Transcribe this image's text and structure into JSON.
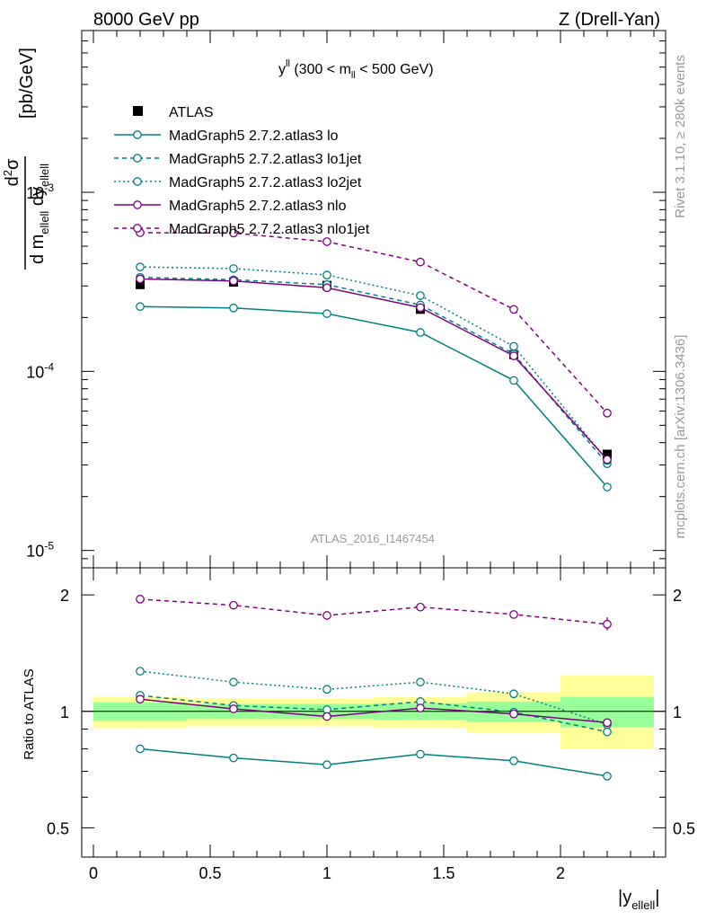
{
  "header": {
    "left": "8000 GeV pp",
    "right": "Z (Drell-Yan)"
  },
  "side_labels": {
    "rivet": "Rivet 3.1.10, ≥ 280k events",
    "mcplots": "mcplots.cern.ch [arXiv:1306.3436]"
  },
  "colors": {
    "teal": "#008080",
    "purple": "#800080",
    "atlas": "#000000",
    "band_inner": "#99ff99",
    "band_outer": "#ffff99"
  },
  "chart_data": [
    {
      "type": "line",
      "title": "y^ll (300 < m_ll < 500 GeV)",
      "watermark": "ATLAS_2016_I1467454",
      "ylabel": "d²σ / d m_ellell dy_ellell [pb/GeV]",
      "xlabel": "",
      "yscale": "log",
      "ylim": [
        8e-06,
        0.008
      ],
      "xlim": [
        -0.05,
        2.45
      ],
      "y_tick_labels": [
        "10^-5",
        "10^-4",
        "10^-3"
      ],
      "legend_position": "top-left",
      "x": [
        0.2,
        0.6,
        1.0,
        1.4,
        1.8,
        2.2
      ],
      "series": [
        {
          "name": "ATLAS",
          "style": "marker",
          "color": "#000000",
          "values": [
            0.000305,
            0.000315,
            0.000302,
            0.000222,
            0.000124,
            3.45e-05
          ]
        },
        {
          "name": "MadGraph5 2.7.2.atlas3 lo",
          "style": "solid",
          "color": "#008080",
          "values": [
            0.00023,
            0.000226,
            0.00021,
            0.000165,
            8.9e-05,
            2.26e-05
          ]
        },
        {
          "name": "MadGraph5 2.7.2.atlas3 lo1jet",
          "style": "dashed",
          "color": "#008080",
          "values": [
            0.000335,
            0.000325,
            0.000305,
            0.000235,
            0.000125,
            3.05e-05
          ]
        },
        {
          "name": "MadGraph5 2.7.2.atlas3 lo2jet",
          "style": "dotted",
          "color": "#008080",
          "values": [
            0.000383,
            0.000375,
            0.000345,
            0.000265,
            0.000138,
            3.18e-05
          ]
        },
        {
          "name": "MadGraph5 2.7.2.atlas3 nlo",
          "style": "solid",
          "color": "#800080",
          "values": [
            0.000328,
            0.00032,
            0.000293,
            0.000227,
            0.000122,
            3.22e-05
          ]
        },
        {
          "name": "MadGraph5 2.7.2.atlas3 nlo1jet",
          "style": "dashed",
          "color": "#800080",
          "values": [
            0.000595,
            0.000592,
            0.00053,
            0.000408,
            0.000222,
            5.85e-05
          ]
        }
      ]
    },
    {
      "type": "line",
      "title": "",
      "ylabel": "Ratio to ATLAS",
      "xlabel": "|y_ellell|",
      "yscale": "log",
      "ylim": [
        0.42,
        2.35
      ],
      "xlim": [
        -0.05,
        2.45
      ],
      "y_ticks": [
        0.5,
        1,
        2
      ],
      "y_tick_labels": [
        "0.5",
        "1",
        "2"
      ],
      "x_ticks": [
        0,
        0.5,
        1,
        1.5,
        2
      ],
      "x_tick_labels": [
        "0",
        "0.5",
        "1",
        "1.5",
        "2"
      ],
      "x": [
        0.2,
        0.6,
        1.0,
        1.4,
        1.8,
        2.2
      ],
      "bands": [
        {
          "x0": 0.0,
          "x1": 0.4,
          "inner": [
            0.945,
            1.055
          ],
          "outer": [
            0.905,
            1.09
          ]
        },
        {
          "x0": 0.4,
          "x1": 0.8,
          "inner": [
            0.955,
            1.045
          ],
          "outer": [
            0.915,
            1.08
          ]
        },
        {
          "x0": 0.8,
          "x1": 1.2,
          "inner": [
            0.955,
            1.045
          ],
          "outer": [
            0.915,
            1.08
          ]
        },
        {
          "x0": 1.2,
          "x1": 1.6,
          "inner": [
            0.95,
            1.05
          ],
          "outer": [
            0.905,
            1.09
          ]
        },
        {
          "x0": 1.6,
          "x1": 2.0,
          "inner": [
            0.94,
            1.06
          ],
          "outer": [
            0.88,
            1.12
          ]
        },
        {
          "x0": 2.0,
          "x1": 2.4,
          "inner": [
            0.91,
            1.09
          ],
          "outer": [
            0.8,
            1.24
          ]
        }
      ],
      "series": [
        {
          "name": "MadGraph5 2.7.2.atlas3 lo",
          "style": "solid",
          "color": "#008080",
          "values": [
            0.8,
            0.758,
            0.728,
            0.775,
            0.745,
            0.68
          ]
        },
        {
          "name": "MadGraph5 2.7.2.atlas3 lo1jet",
          "style": "dashed",
          "color": "#008080",
          "values": [
            1.1,
            1.035,
            1.01,
            1.06,
            0.995,
            0.885
          ]
        },
        {
          "name": "MadGraph5 2.7.2.atlas3 lo2jet",
          "style": "dotted",
          "color": "#008080",
          "values": [
            1.27,
            1.19,
            1.14,
            1.19,
            1.11,
            0.925
          ]
        },
        {
          "name": "MadGraph5 2.7.2.atlas3 nlo",
          "style": "solid",
          "color": "#800080",
          "values": [
            1.075,
            1.015,
            0.97,
            1.02,
            0.985,
            0.935
          ]
        },
        {
          "name": "MadGraph5 2.7.2.atlas3 nlo1jet",
          "style": "dashed",
          "color": "#800080",
          "values": [
            1.95,
            1.88,
            1.77,
            1.86,
            1.78,
            1.68
          ],
          "error_last": [
            1.62,
            1.75
          ]
        }
      ]
    }
  ]
}
